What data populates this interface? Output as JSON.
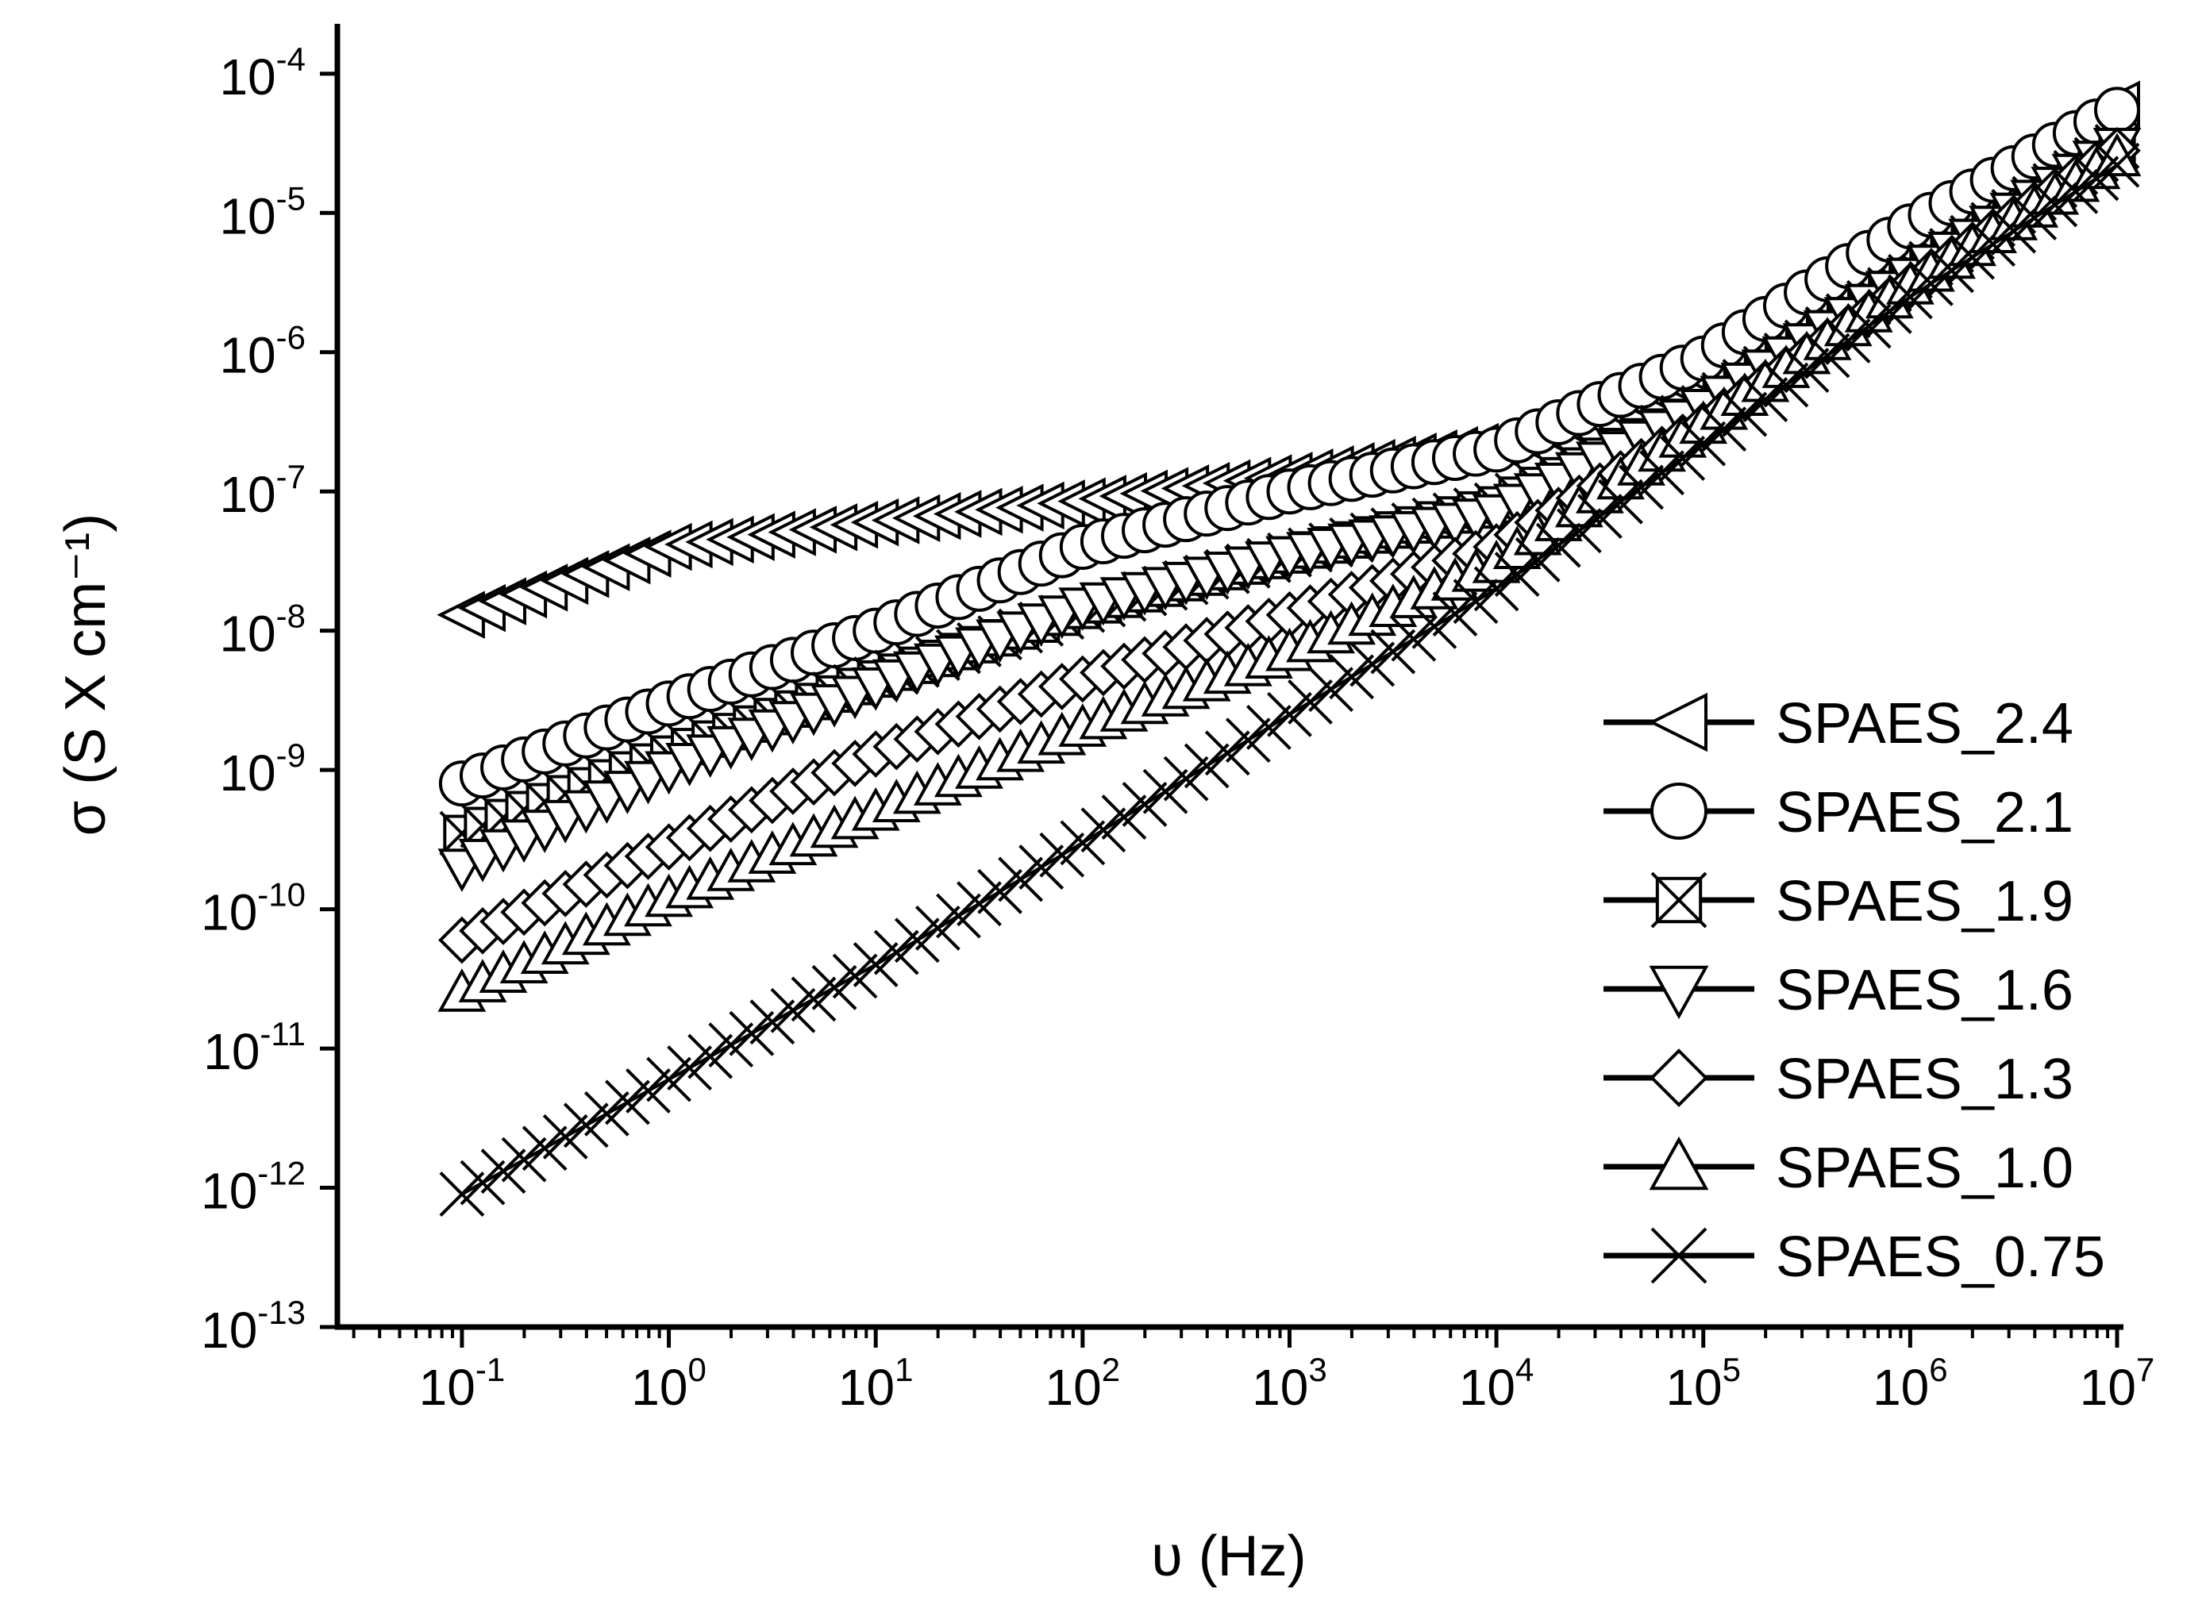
{
  "chart_data": {
    "type": "scatter",
    "xscale": "log",
    "yscale": "log",
    "xlabel": "υ (Hz)",
    "ylabel": "σ (S X cm⁻¹)",
    "xlim": [
      0.025,
      10000000
    ],
    "ylim": [
      1e-13,
      0.0002
    ],
    "x_ticks": [
      {
        "base": "10",
        "exp": "-1"
      },
      {
        "base": "10",
        "exp": "0"
      },
      {
        "base": "10",
        "exp": "1"
      },
      {
        "base": "10",
        "exp": "2"
      },
      {
        "base": "10",
        "exp": "3"
      },
      {
        "base": "10",
        "exp": "4"
      },
      {
        "base": "10",
        "exp": "5"
      },
      {
        "base": "10",
        "exp": "6"
      },
      {
        "base": "10",
        "exp": "7"
      }
    ],
    "y_ticks": [
      {
        "base": "10",
        "exp": "-13"
      },
      {
        "base": "10",
        "exp": "-12"
      },
      {
        "base": "10",
        "exp": "-11"
      },
      {
        "base": "10",
        "exp": "-10"
      },
      {
        "base": "10",
        "exp": "-9"
      },
      {
        "base": "10",
        "exp": "-8"
      },
      {
        "base": "10",
        "exp": "-7"
      },
      {
        "base": "10",
        "exp": "-6"
      },
      {
        "base": "10",
        "exp": "-5"
      },
      {
        "base": "10",
        "exp": "-4"
      }
    ],
    "legend_position": "center-right",
    "series": [
      {
        "name": "SPAES_2.4",
        "marker": "triangle-left",
        "points": [
          [
            0.1,
            1.3e-08
          ],
          [
            1,
            4e-08
          ],
          [
            10,
            6e-08
          ],
          [
            100,
            8.5e-08
          ],
          [
            1000,
            1.3e-07
          ],
          [
            10000,
            2.2e-07
          ],
          [
            100000,
            9e-07
          ],
          [
            1000000,
            8e-06
          ],
          [
            10000000,
            6e-05
          ]
        ]
      },
      {
        "name": "SPAES_2.1",
        "marker": "circle",
        "points": [
          [
            0.1,
            8e-10
          ],
          [
            1,
            3e-09
          ],
          [
            10,
            1e-08
          ],
          [
            100,
            4e-08
          ],
          [
            1000,
            1e-07
          ],
          [
            10000,
            2e-07
          ],
          [
            100000,
            9e-07
          ],
          [
            1000000,
            8e-06
          ],
          [
            10000000,
            5.5e-05
          ]
        ]
      },
      {
        "name": "SPAES_1.9",
        "marker": "square-x",
        "points": [
          [
            0.1,
            3.5e-10
          ],
          [
            1,
            1.3e-09
          ],
          [
            10,
            4.5e-09
          ],
          [
            100,
            1.4e-08
          ],
          [
            1000,
            3.5e-08
          ],
          [
            10000,
            8e-08
          ],
          [
            100000,
            4e-07
          ],
          [
            1000000,
            3.5e-06
          ],
          [
            10000000,
            3e-05
          ]
        ]
      },
      {
        "name": "SPAES_1.6",
        "marker": "triangle-down",
        "points": [
          [
            0.1,
            2e-10
          ],
          [
            1,
            1e-09
          ],
          [
            10,
            4e-09
          ],
          [
            100,
            1.5e-08
          ],
          [
            1000,
            3.5e-08
          ],
          [
            10000,
            7e-08
          ],
          [
            100000,
            4e-07
          ],
          [
            1000000,
            3.5e-06
          ],
          [
            10000000,
            3e-05
          ]
        ]
      },
      {
        "name": "SPAES_1.3",
        "marker": "diamond",
        "points": [
          [
            0.1,
            6e-11
          ],
          [
            1,
            2.8e-10
          ],
          [
            10,
            1.3e-09
          ],
          [
            100,
            4.5e-09
          ],
          [
            1000,
            1.3e-08
          ],
          [
            10000,
            4e-08
          ],
          [
            100000,
            3e-07
          ],
          [
            1000000,
            3e-06
          ],
          [
            10000000,
            2.8e-05
          ]
        ]
      },
      {
        "name": "SPAES_1.0",
        "marker": "triangle-up",
        "points": [
          [
            0.1,
            2.5e-11
          ],
          [
            1,
            1.2e-10
          ],
          [
            10,
            5e-10
          ],
          [
            100,
            2e-09
          ],
          [
            1000,
            7e-09
          ],
          [
            10000,
            3e-08
          ],
          [
            100000,
            3e-07
          ],
          [
            1000000,
            3e-06
          ],
          [
            10000000,
            2.5e-05
          ]
        ]
      },
      {
        "name": "SPAES_0.75",
        "marker": "x",
        "points": [
          [
            0.1,
            9e-13
          ],
          [
            1,
            6e-12
          ],
          [
            10,
            4e-11
          ],
          [
            100,
            3e-10
          ],
          [
            1000,
            2.5e-09
          ],
          [
            10000,
            2e-08
          ],
          [
            100000,
            2.2e-07
          ],
          [
            1000000,
            2.5e-06
          ],
          [
            10000000,
            2.2e-05
          ]
        ]
      }
    ]
  }
}
